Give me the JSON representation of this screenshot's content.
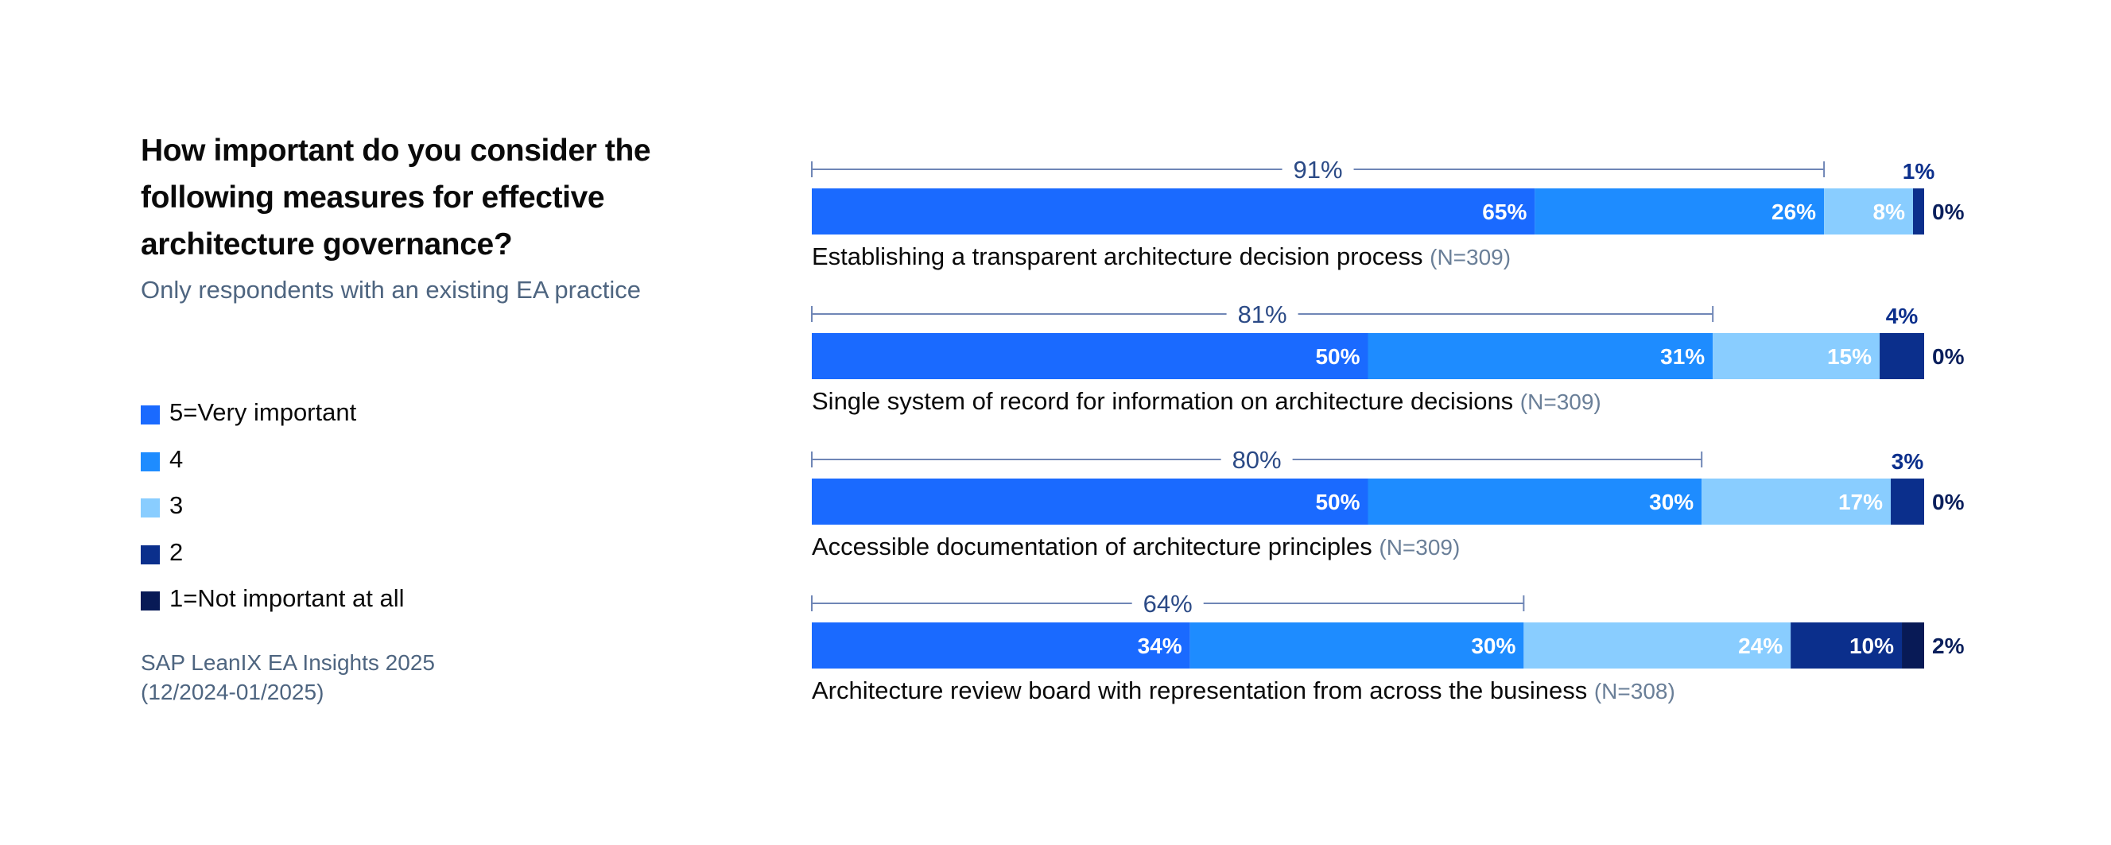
{
  "chart_data": {
    "type": "bar",
    "orientation": "horizontal",
    "stacked": true,
    "title": "How important do you consider the following measures for effective architecture governance?",
    "subtitle": "Only respondents with an existing EA practice",
    "source": [
      "SAP LeanIX EA Insights 2025",
      "(12/2024-01/2025)"
    ],
    "xlim": [
      0,
      100
    ],
    "legend_position": "left",
    "series": [
      {
        "name": "5=Very important",
        "color": "#1a6aff",
        "label_color": "#ffffff"
      },
      {
        "name": "4",
        "color": "#1e8cff",
        "label_color": "#ffffff"
      },
      {
        "name": "3",
        "color": "#89cdff",
        "label_color": "#ffffff"
      },
      {
        "name": "2",
        "color": "#0b2f8c",
        "label_color": "#ffffff"
      },
      {
        "name": "1=Not important at all",
        "color": "#081a56",
        "label_color": "#ffffff"
      }
    ],
    "categories": [
      {
        "label": "Establishing a transparent architecture decision process",
        "n": "(N=309)",
        "values": [
          65,
          26,
          8,
          1,
          0
        ],
        "top2": 91,
        "top2_label": "91%",
        "labels": [
          "65%",
          "26%",
          "8%",
          "1%",
          "0%"
        ]
      },
      {
        "label": "Single system of record for information on architecture decisions",
        "n": "(N=309)",
        "values": [
          50,
          31,
          15,
          4,
          0
        ],
        "top2": 81,
        "top2_label": "81%",
        "labels": [
          "50%",
          "31%",
          "15%",
          "4%",
          "0%"
        ]
      },
      {
        "label": "Accessible documentation of architecture principles",
        "n": "(N=309)",
        "values": [
          50,
          30,
          17,
          3,
          0
        ],
        "top2": 80,
        "top2_label": "80%",
        "labels": [
          "50%",
          "30%",
          "17%",
          "3%",
          "0%"
        ]
      },
      {
        "label": "Architecture review board with representation from across the business",
        "n": "(N=308)",
        "values": [
          34,
          30,
          24,
          10,
          2
        ],
        "top2": 64,
        "top2_label": "64%",
        "labels": [
          "34%",
          "30%",
          "24%",
          "10%",
          "2%"
        ]
      }
    ]
  }
}
